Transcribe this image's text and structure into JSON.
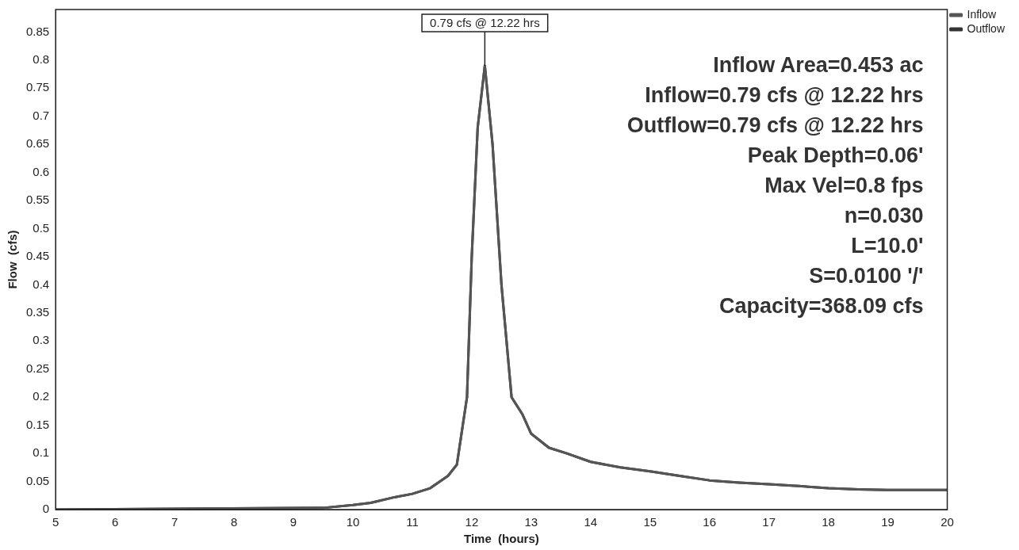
{
  "chart_data": {
    "type": "line",
    "xlabel": "Time  (hours)",
    "ylabel": "Flow  (cfs)",
    "x": [
      5,
      9.5,
      10,
      10.3,
      10.7,
      11,
      11.3,
      11.6,
      11.75,
      11.92,
      12.0,
      12.1,
      12.22,
      12.35,
      12.5,
      12.67,
      12.85,
      13.0,
      13.3,
      13.6,
      14,
      14.5,
      15,
      15.5,
      16,
      16.5,
      17,
      17.5,
      18,
      18.5,
      19,
      20
    ],
    "series": [
      {
        "name": "Inflow",
        "color": "#555555",
        "values": [
          0,
          0.003,
          0.008,
          0.012,
          0.022,
          0.028,
          0.038,
          0.06,
          0.08,
          0.2,
          0.45,
          0.68,
          0.79,
          0.65,
          0.4,
          0.2,
          0.17,
          0.135,
          0.11,
          0.1,
          0.085,
          0.075,
          0.068,
          0.06,
          0.052,
          0.048,
          0.045,
          0.042,
          0.038,
          0.036,
          0.035,
          0.035
        ]
      },
      {
        "name": "Outflow",
        "color": "#333333",
        "values": [
          0,
          0.003,
          0.008,
          0.012,
          0.022,
          0.028,
          0.038,
          0.06,
          0.08,
          0.2,
          0.45,
          0.68,
          0.79,
          0.65,
          0.4,
          0.2,
          0.17,
          0.135,
          0.11,
          0.1,
          0.085,
          0.075,
          0.068,
          0.06,
          0.052,
          0.048,
          0.045,
          0.042,
          0.038,
          0.036,
          0.035,
          0.035
        ]
      }
    ],
    "xlim": [
      5,
      20
    ],
    "xticks": [
      5,
      6,
      7,
      8,
      9,
      10,
      11,
      12,
      13,
      14,
      15,
      16,
      17,
      18,
      19,
      20
    ],
    "ylim": [
      0,
      0.89
    ],
    "yticks": [
      0,
      0.05,
      0.1,
      0.15,
      0.2,
      0.25,
      0.3,
      0.35,
      0.4,
      0.45,
      0.5,
      0.55,
      0.6,
      0.65,
      0.7,
      0.75,
      0.8,
      0.85
    ],
    "annotations": [
      {
        "text": "0.79 cfs @ 12.22 hrs",
        "x": 12.22,
        "y": 0.79
      },
      "Inflow Area=0.453 ac",
      "Inflow=0.79 cfs @ 12.22 hrs",
      "Outflow=0.79 cfs @ 12.22 hrs",
      "Peak Depth=0.06'",
      "Max Vel=0.8 fps",
      "n=0.030",
      "L=10.0'",
      "S=0.0100 '/'",
      "Capacity=368.09 cfs"
    ],
    "grid": false,
    "legend": "top right",
    "marker": "none",
    "line_style": "solid"
  }
}
